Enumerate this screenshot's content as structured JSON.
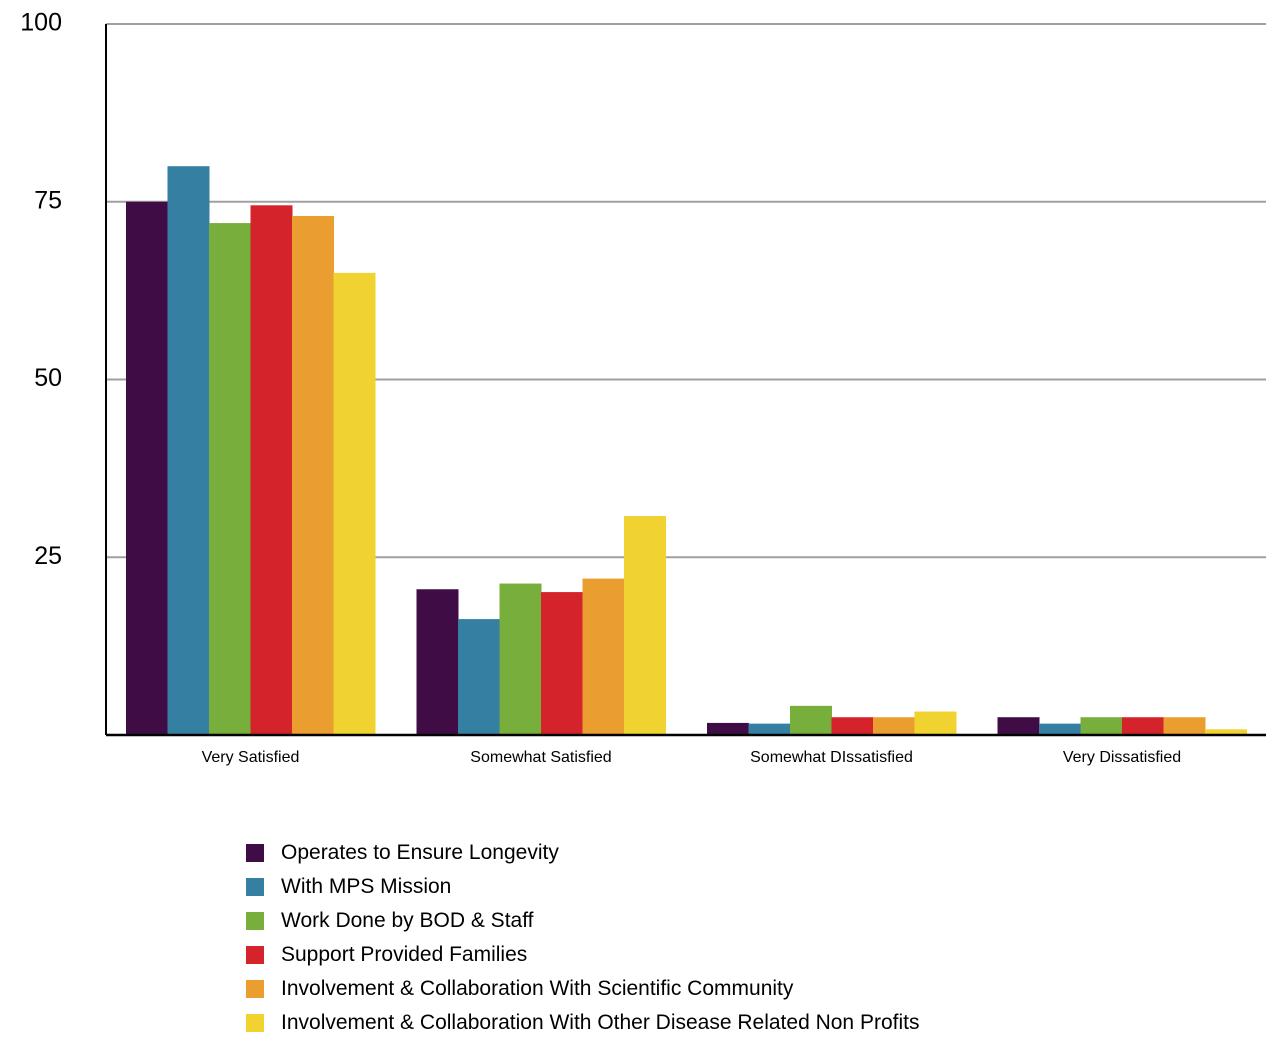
{
  "chart_data": {
    "type": "bar",
    "categories": [
      "Very Satisfied",
      "Somewhat Satisfied",
      "Somewhat DIssatisfied",
      "Very Dissatisfied"
    ],
    "yticks": [
      "100",
      "75",
      "50",
      "25"
    ],
    "ylim": [
      0,
      100
    ],
    "grid": true,
    "legend_position": "bottom",
    "series": [
      {
        "name": "Operates to Ensure Longevity",
        "color": "#3f0c45",
        "values": [
          75,
          20.5,
          1.7,
          2.5
        ]
      },
      {
        "name": "With MPS Mission",
        "color": "#357fa2",
        "values": [
          80,
          16.3,
          1.6,
          1.6
        ]
      },
      {
        "name": "Work Done by BOD & Staff",
        "color": "#78ae3b",
        "values": [
          72,
          21.3,
          4.1,
          2.5
        ]
      },
      {
        "name": "Support Provided Families",
        "color": "#d5232b",
        "values": [
          74.5,
          20.1,
          2.5,
          2.5
        ]
      },
      {
        "name": "Involvement & Collaboration With Scientific Community",
        "color": "#eb9e30",
        "values": [
          73,
          22,
          2.5,
          2.5
        ]
      },
      {
        "name": "Involvement & Collaboration With Other Disease Related Non Profits",
        "color": "#f0d230",
        "values": [
          65,
          30.8,
          3.3,
          0.8
        ]
      }
    ]
  }
}
